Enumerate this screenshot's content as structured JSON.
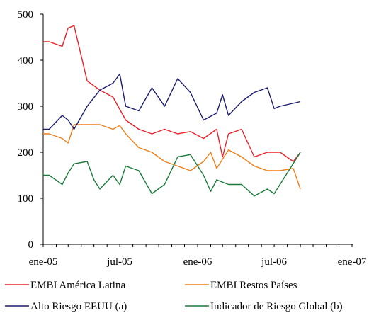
{
  "chart_data": {
    "type": "line",
    "title": "",
    "xlabel": "",
    "ylabel": "",
    "ylim": [
      0,
      500
    ],
    "yticks": [
      0,
      100,
      200,
      300,
      400,
      500
    ],
    "x": [
      "2005-01",
      "2005-02",
      "2005-03",
      "2005-04",
      "2005-05",
      "2005-06",
      "2005-07",
      "2005-08",
      "2005-09",
      "2005-10",
      "2005-11",
      "2005-12",
      "2006-01",
      "2006-02",
      "2006-03",
      "2006-04",
      "2006-05",
      "2006-06",
      "2006-07",
      "2006-08",
      "2006-09",
      "2006-10",
      "2006-11",
      "2006-12",
      "2007-01"
    ],
    "x_tick_labels": [
      {
        "x": "2005-01",
        "label": "ene-05"
      },
      {
        "x": "2005-07",
        "label": "jul-05"
      },
      {
        "x": "2006-01",
        "label": "ene-06"
      },
      {
        "x": "2006-07",
        "label": "jul-06"
      },
      {
        "x": "2007-01",
        "label": "ene-07"
      }
    ],
    "grid": false,
    "legend_position": "bottom",
    "series": [
      {
        "name": "EMBI América Latina",
        "color": "#e8212b",
        "points": [
          [
            "2005-01-01",
            440
          ],
          [
            "2005-01-15",
            440
          ],
          [
            "2005-02-15",
            430
          ],
          [
            "2005-03-01",
            470
          ],
          [
            "2005-03-15",
            475
          ],
          [
            "2005-04-15",
            355
          ],
          [
            "2005-05-15",
            335
          ],
          [
            "2005-06-15",
            320
          ],
          [
            "2005-07-15",
            270
          ],
          [
            "2005-08-15",
            250
          ],
          [
            "2005-09-15",
            240
          ],
          [
            "2005-10-15",
            250
          ],
          [
            "2005-11-15",
            240
          ],
          [
            "2005-12-15",
            245
          ],
          [
            "2006-01-15",
            230
          ],
          [
            "2006-02-15",
            250
          ],
          [
            "2006-03-01",
            190
          ],
          [
            "2006-03-15",
            240
          ],
          [
            "2006-04-15",
            250
          ],
          [
            "2006-05-15",
            190
          ],
          [
            "2006-06-15",
            200
          ],
          [
            "2006-07-15",
            200
          ],
          [
            "2006-08-15",
            180
          ],
          [
            "2006-09-01",
            200
          ]
        ]
      },
      {
        "name": "EMBI Restos Países",
        "color": "#f07f1a",
        "points": [
          [
            "2005-01-01",
            240
          ],
          [
            "2005-01-15",
            240
          ],
          [
            "2005-02-15",
            230
          ],
          [
            "2005-03-01",
            220
          ],
          [
            "2005-03-15",
            260
          ],
          [
            "2005-04-15",
            260
          ],
          [
            "2005-05-15",
            260
          ],
          [
            "2005-06-15",
            250
          ],
          [
            "2005-07-01",
            258
          ],
          [
            "2005-07-15",
            240
          ],
          [
            "2005-08-15",
            210
          ],
          [
            "2005-09-15",
            200
          ],
          [
            "2005-10-15",
            180
          ],
          [
            "2005-11-15",
            170
          ],
          [
            "2005-12-15",
            160
          ],
          [
            "2006-01-15",
            180
          ],
          [
            "2006-02-01",
            200
          ],
          [
            "2006-02-15",
            165
          ],
          [
            "2006-03-15",
            205
          ],
          [
            "2006-04-15",
            190
          ],
          [
            "2006-05-15",
            170
          ],
          [
            "2006-06-15",
            160
          ],
          [
            "2006-07-15",
            160
          ],
          [
            "2006-08-15",
            165
          ],
          [
            "2006-09-01",
            120
          ]
        ]
      },
      {
        "name": "Alto Riesgo EEUU (a)",
        "color": "#1a1a6e",
        "points": [
          [
            "2005-01-01",
            250
          ],
          [
            "2005-01-15",
            250
          ],
          [
            "2005-02-15",
            280
          ],
          [
            "2005-03-01",
            270
          ],
          [
            "2005-03-15",
            250
          ],
          [
            "2005-04-15",
            300
          ],
          [
            "2005-05-15",
            335
          ],
          [
            "2005-06-15",
            350
          ],
          [
            "2005-07-01",
            370
          ],
          [
            "2005-07-15",
            300
          ],
          [
            "2005-08-15",
            290
          ],
          [
            "2005-09-15",
            340
          ],
          [
            "2005-10-15",
            300
          ],
          [
            "2005-11-15",
            360
          ],
          [
            "2005-12-15",
            330
          ],
          [
            "2006-01-15",
            270
          ],
          [
            "2006-02-15",
            285
          ],
          [
            "2006-03-01",
            325
          ],
          [
            "2006-03-15",
            280
          ],
          [
            "2006-04-15",
            310
          ],
          [
            "2006-05-15",
            330
          ],
          [
            "2006-06-15",
            340
          ],
          [
            "2006-07-01",
            295
          ],
          [
            "2006-07-15",
            300
          ],
          [
            "2006-09-01",
            310
          ]
        ]
      },
      {
        "name": "Indicador de Riesgo Global (b)",
        "color": "#1a7a3a",
        "points": [
          [
            "2005-01-01",
            150
          ],
          [
            "2005-01-15",
            150
          ],
          [
            "2005-02-15",
            130
          ],
          [
            "2005-03-01",
            155
          ],
          [
            "2005-03-15",
            175
          ],
          [
            "2005-04-15",
            180
          ],
          [
            "2005-05-01",
            140
          ],
          [
            "2005-05-15",
            120
          ],
          [
            "2005-06-15",
            150
          ],
          [
            "2005-07-01",
            130
          ],
          [
            "2005-07-15",
            170
          ],
          [
            "2005-08-15",
            160
          ],
          [
            "2005-09-15",
            110
          ],
          [
            "2005-10-15",
            130
          ],
          [
            "2005-11-15",
            190
          ],
          [
            "2005-12-15",
            195
          ],
          [
            "2006-01-15",
            150
          ],
          [
            "2006-02-01",
            115
          ],
          [
            "2006-02-15",
            140
          ],
          [
            "2006-03-15",
            130
          ],
          [
            "2006-04-15",
            130
          ],
          [
            "2006-05-15",
            105
          ],
          [
            "2006-06-15",
            120
          ],
          [
            "2006-07-01",
            110
          ],
          [
            "2006-09-01",
            200
          ]
        ]
      }
    ]
  }
}
